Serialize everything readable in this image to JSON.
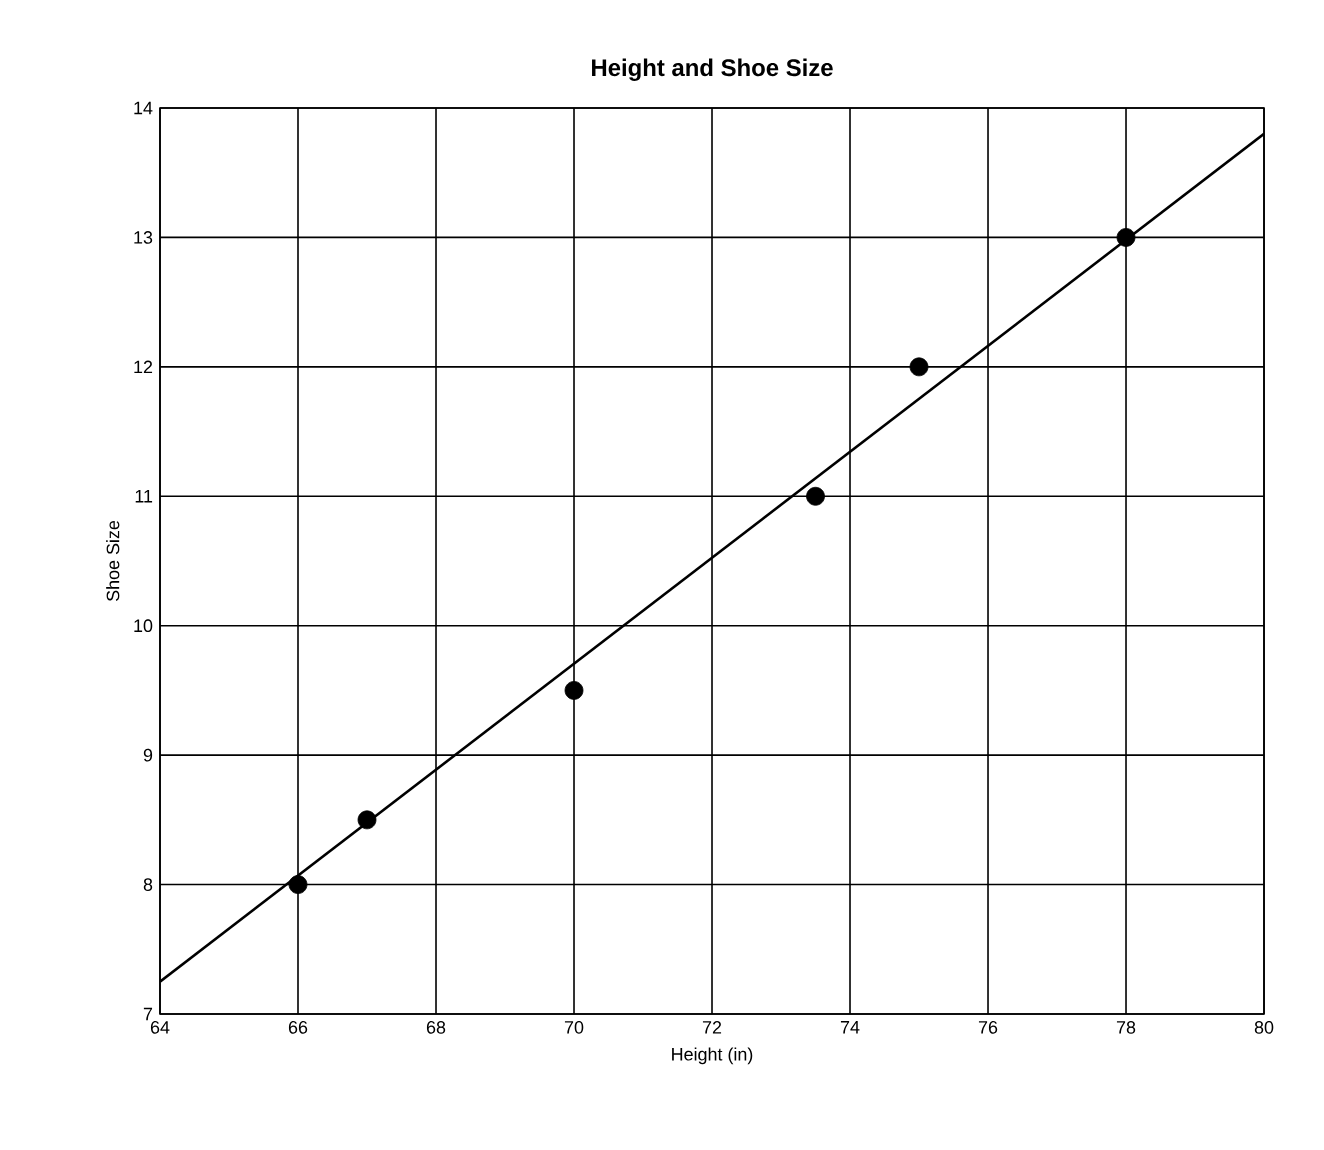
{
  "chart_data": {
    "type": "scatter",
    "title": "Height and Shoe Size",
    "xlabel": "Height (in)",
    "ylabel": "Shoe Size",
    "xlim": [
      64,
      80
    ],
    "ylim": [
      7,
      14
    ],
    "xticks": [
      64,
      66,
      68,
      70,
      72,
      74,
      76,
      78,
      80
    ],
    "yticks": [
      7,
      8,
      9,
      10,
      11,
      12,
      13,
      14
    ],
    "grid": true,
    "series": [
      {
        "color": "#000000",
        "marker": "circle",
        "x": [
          66,
          67,
          70,
          73.5,
          75,
          78
        ],
        "values": [
          8,
          8.5,
          9.5,
          11,
          12,
          13
        ]
      },
      {
        "type": "line",
        "color": "#000000",
        "marker": "none",
        "line_style": "solid",
        "x": [
          64,
          80
        ],
        "values": [
          7.25,
          13.8
        ]
      }
    ]
  }
}
